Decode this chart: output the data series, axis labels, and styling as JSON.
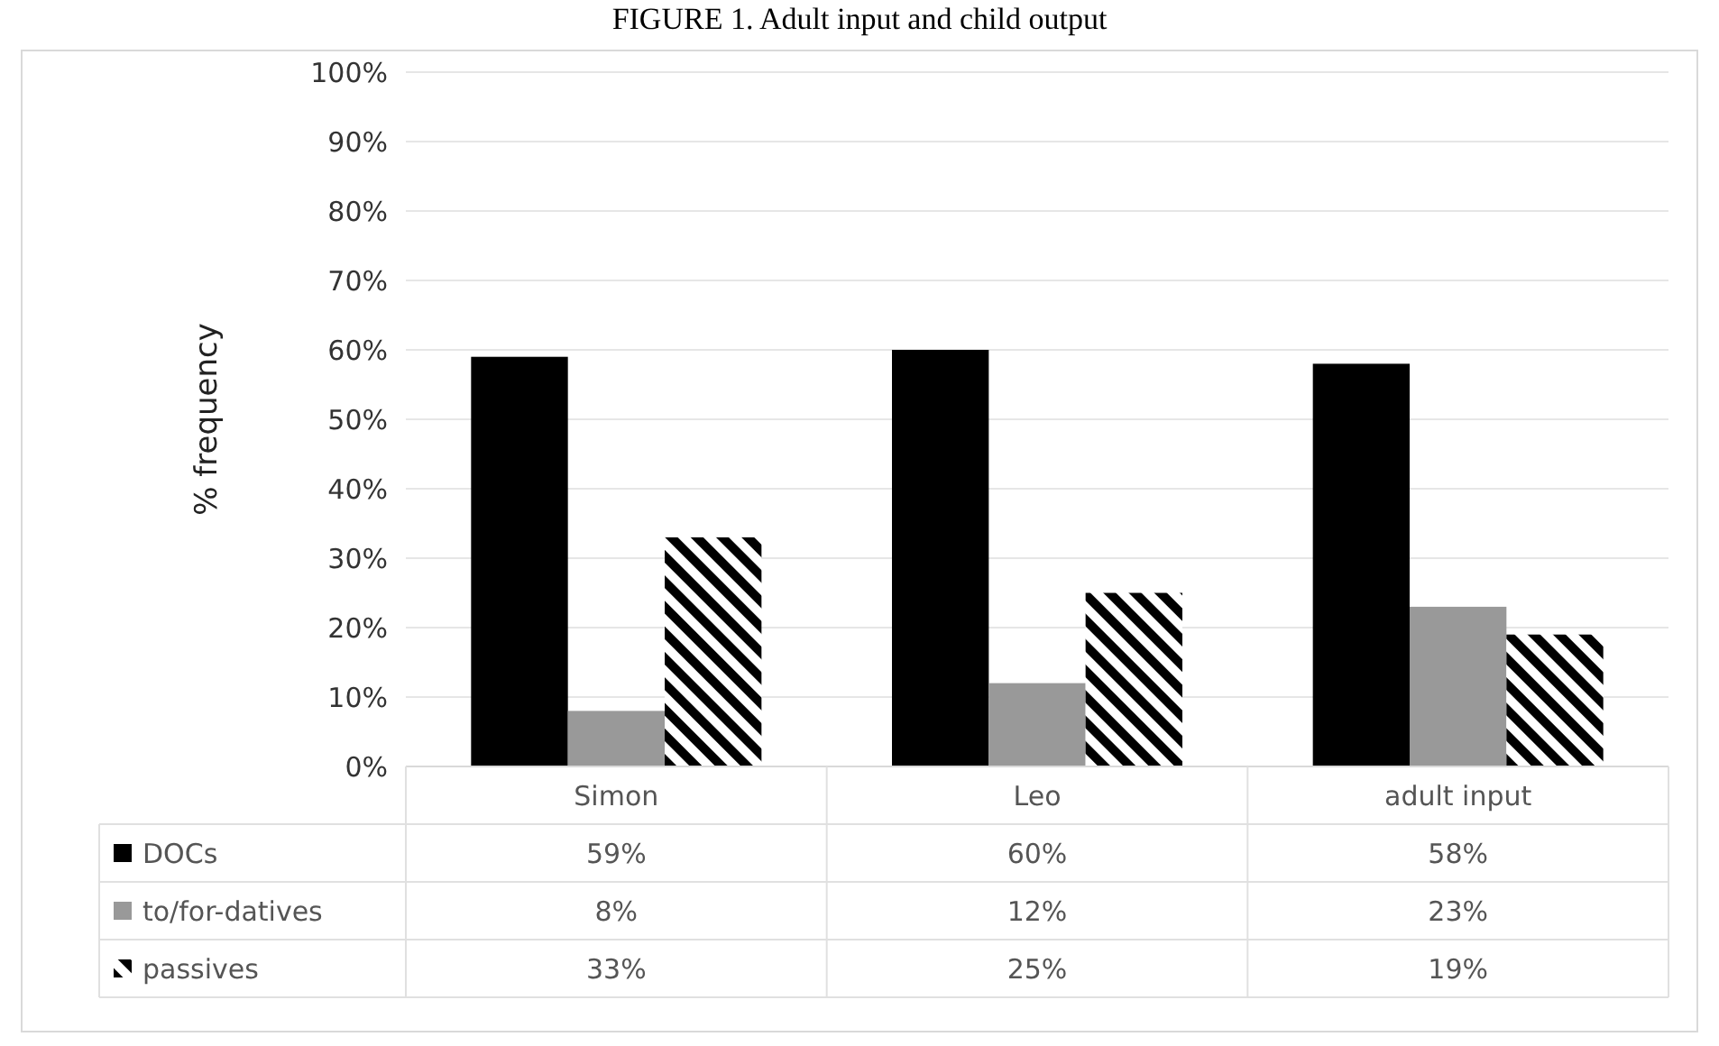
{
  "chart_data": {
    "type": "bar",
    "title": "FIGURE 1. Adult input and child output",
    "ylabel": "% frequency",
    "categories": [
      "Simon",
      "Leo",
      "adult input"
    ],
    "series": [
      {
        "name": "DOCs",
        "color": "#000000",
        "values": [
          59,
          60,
          58
        ],
        "value_labels": [
          "59%",
          "60%",
          "58%"
        ]
      },
      {
        "name": "to/for-datives",
        "color": "#999999",
        "values": [
          8,
          12,
          23
        ],
        "value_labels": [
          "8%",
          "12%",
          "23%"
        ]
      },
      {
        "name": "passives",
        "color": "#000000",
        "values": [
          33,
          25,
          19
        ],
        "value_labels": [
          "33%",
          "25%",
          "19%"
        ]
      }
    ],
    "ylim": [
      0,
      100
    ],
    "yticks": [
      {
        "value": 0,
        "label": "0%"
      },
      {
        "value": 10,
        "label": "10%"
      },
      {
        "value": 20,
        "label": "20%"
      },
      {
        "value": 30,
        "label": "30%"
      },
      {
        "value": 40,
        "label": "40%"
      },
      {
        "value": 50,
        "label": "50%"
      },
      {
        "value": 60,
        "label": "60%"
      },
      {
        "value": 70,
        "label": "70%"
      },
      {
        "value": 80,
        "label": "80%"
      },
      {
        "value": 90,
        "label": "90%"
      },
      {
        "value": 100,
        "label": "100%"
      }
    ],
    "grid": "y",
    "legend": "bottom"
  }
}
